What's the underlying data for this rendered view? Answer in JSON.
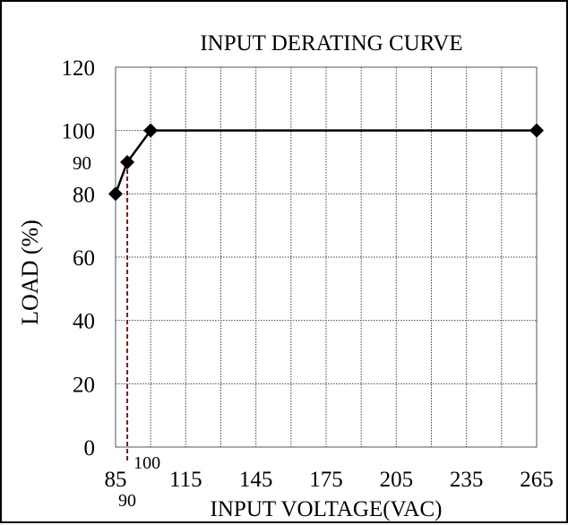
{
  "chart_data": {
    "type": "line",
    "title": "INPUT DERATING CURVE",
    "xlabel": "INPUT VOLTAGE(VAC)",
    "ylabel": "LOAD (%)",
    "xlim": [
      85,
      265
    ],
    "ylim": [
      0,
      120
    ],
    "x_ticks": [
      85,
      115,
      145,
      175,
      205,
      235,
      265
    ],
    "y_ticks": [
      0,
      20,
      40,
      60,
      80,
      100,
      120
    ],
    "x_extra_ticks": [
      {
        "value": 90,
        "label": "90"
      },
      {
        "value": 100,
        "label": "100"
      }
    ],
    "y_extra_ticks": [
      {
        "value": 90,
        "label": "90"
      }
    ],
    "series": [
      {
        "x": [
          85,
          90,
          100,
          265
        ],
        "y": [
          80,
          90,
          100,
          100
        ],
        "marker": "diamond",
        "color": "#000000"
      }
    ],
    "annotations": [
      {
        "type": "vertical-dashed-line",
        "x": 90,
        "y_from": 0,
        "y_to": 90,
        "color": "#7a1a1a"
      }
    ],
    "grid": true,
    "grid_minor_x_step": 15,
    "grid_minor_y_step": 20
  }
}
